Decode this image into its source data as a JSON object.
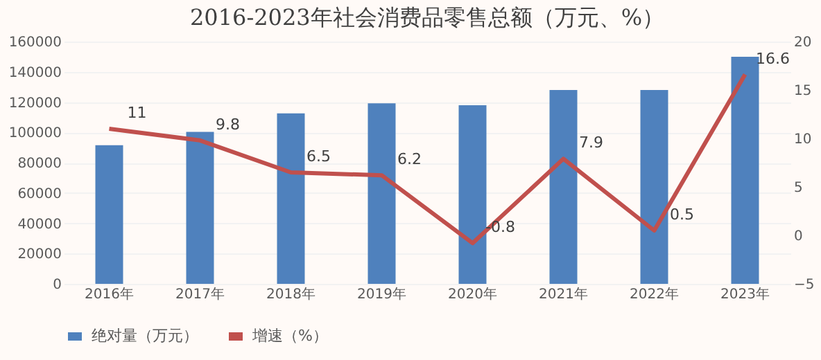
{
  "chart_data": {
    "type": "bar",
    "title": "2016-2023年社会消费品零售总额（万元、%）",
    "categories": [
      "2016年",
      "2017年",
      "2018年",
      "2019年",
      "2020年",
      "2021年",
      "2022年",
      "2023年"
    ],
    "series": [
      {
        "name": "绝对量（万元）",
        "color": "#4f81bd",
        "values": [
          91600,
          100400,
          112600,
          119200,
          118000,
          128000,
          128000,
          150000
        ]
      },
      {
        "name": "增速（%）",
        "type": "line",
        "axis": "y2",
        "color": "#c0504d",
        "values": [
          11,
          9.8,
          6.5,
          6.2,
          -0.8,
          7.9,
          0.5,
          16.6
        ],
        "data_labels": true
      }
    ],
    "ylim": [
      0,
      160000
    ],
    "yticks": [
      0,
      20000,
      40000,
      60000,
      80000,
      100000,
      120000,
      140000,
      160000
    ],
    "y2lim": [
      -5,
      20
    ],
    "y2ticks": [
      -5,
      0,
      5,
      10,
      15,
      20
    ],
    "grid": "y",
    "legend": "bottom",
    "marker": "none",
    "line_style": "solid"
  }
}
